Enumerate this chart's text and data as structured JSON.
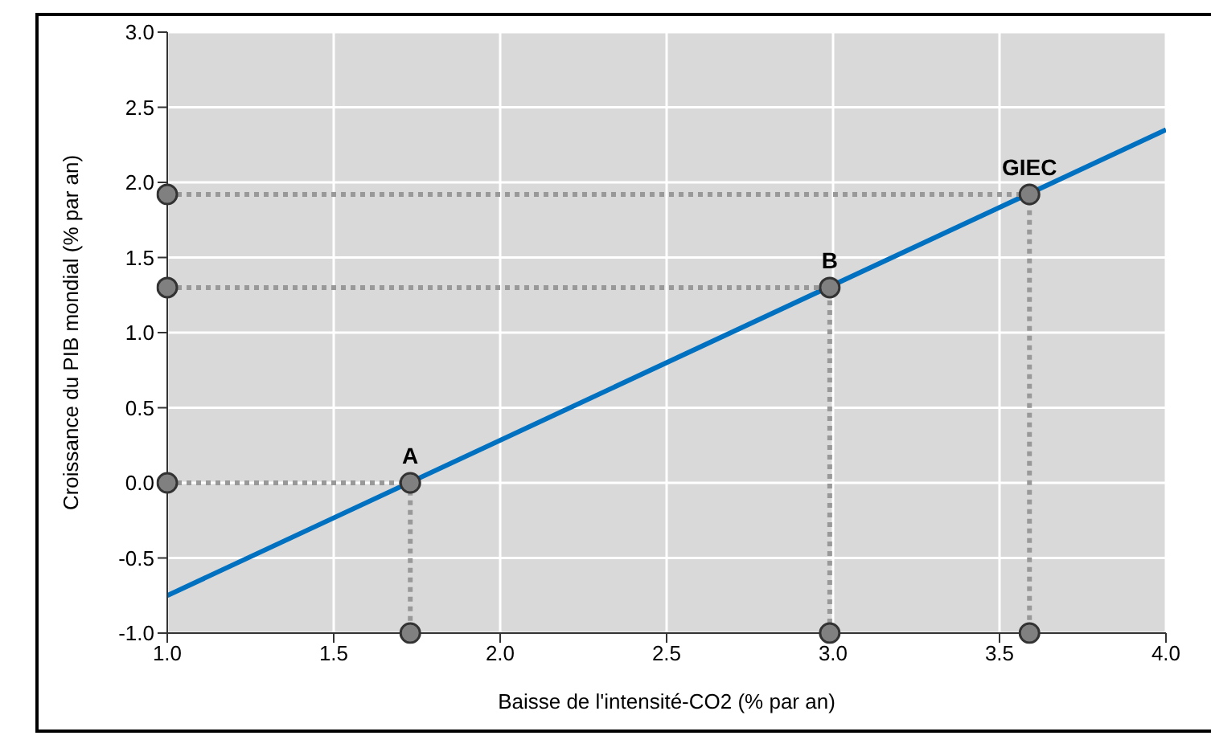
{
  "chart_data": {
    "type": "line",
    "xlabel": "Baisse de l'intensité-CO2 (% par an)",
    "ylabel": "Croissance du PIB mondial (% par an)",
    "xlim": [
      1.0,
      4.0
    ],
    "xticks": [
      {
        "value": 1.0,
        "label": "1.0"
      },
      {
        "value": 1.5,
        "label": "1.5"
      },
      {
        "value": 2.0,
        "label": "2.0"
      },
      {
        "value": 2.5,
        "label": "2.5"
      },
      {
        "value": 3.0,
        "label": "3.0"
      },
      {
        "value": 3.5,
        "label": "3.5"
      },
      {
        "value": 4.0,
        "label": "4.0"
      }
    ],
    "ylim": [
      -1.0,
      3.0
    ],
    "yticks": [
      {
        "value": -1.0,
        "label": "-1.0"
      },
      {
        "value": -0.5,
        "label": "-0.5"
      },
      {
        "value": 0.0,
        "label": "0.0"
      },
      {
        "value": 0.5,
        "label": "0.5"
      },
      {
        "value": 1.0,
        "label": "1.0"
      },
      {
        "value": 1.5,
        "label": "1.5"
      },
      {
        "value": 2.0,
        "label": "2.0"
      },
      {
        "value": 2.5,
        "label": "2.5"
      },
      {
        "value": 3.0,
        "label": "3.0"
      }
    ],
    "grid": true,
    "series": [
      {
        "color": "#0070c0",
        "x": [
          1.0,
          4.0
        ],
        "values": [
          -0.75,
          2.35
        ],
        "line_style": "solid",
        "marker": "none"
      },
      {
        "color": "#999999",
        "x": [
          1.0,
          1.73,
          1.73
        ],
        "values": [
          0.0,
          0.0,
          -1.0
        ],
        "line_style": "dotted",
        "marker": "circle"
      },
      {
        "color": "#999999",
        "x": [
          1.0,
          2.99,
          2.99
        ],
        "values": [
          1.3,
          1.3,
          -1.0
        ],
        "line_style": "dotted",
        "marker": "circle"
      },
      {
        "color": "#999999",
        "x": [
          1.0,
          3.59,
          3.59
        ],
        "values": [
          1.92,
          1.92,
          -1.0
        ],
        "line_style": "dotted",
        "marker": "circle"
      }
    ],
    "annotations": [
      {
        "text": "A",
        "x": 1.73,
        "y": 0.0
      },
      {
        "text": "B",
        "x": 2.99,
        "y": 1.3
      },
      {
        "text": "GIEC",
        "x": 3.59,
        "y": 1.92
      }
    ]
  }
}
